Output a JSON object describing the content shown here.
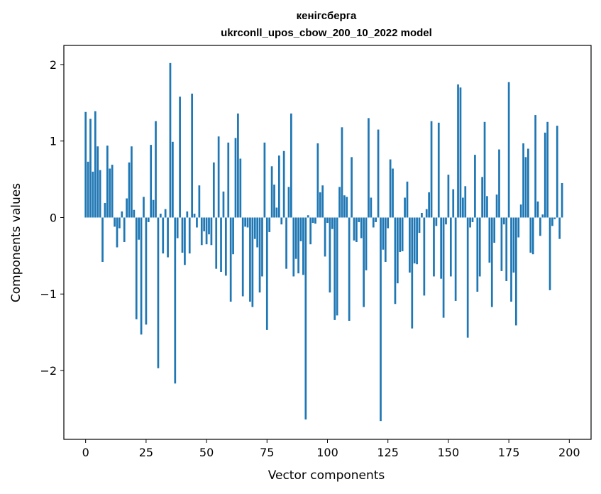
{
  "chart_data": {
    "type": "bar",
    "title": "кенігсберга",
    "subtitle": "ukrconll_upos_cbow_200_10_2022 model",
    "xlabel": "Vector components",
    "ylabel": "Components values",
    "xlim": [
      -9,
      209
    ],
    "ylim": [
      -2.9,
      2.25
    ],
    "xticks": [
      0,
      25,
      50,
      75,
      100,
      125,
      150,
      175,
      200
    ],
    "yticks": [
      -2,
      -1,
      0,
      1,
      2
    ],
    "ytick_labels": [
      "−2",
      "−1",
      "0",
      "1",
      "2"
    ],
    "bar_color": "#1f77b4",
    "grid": false,
    "values": [
      1.38,
      0.73,
      1.29,
      0.6,
      1.39,
      0.93,
      0.62,
      -0.58,
      0.19,
      0.94,
      0.64,
      0.69,
      -0.12,
      -0.39,
      -0.14,
      0.08,
      -0.32,
      0.25,
      0.72,
      0.93,
      0.1,
      -1.33,
      -0.29,
      -1.53,
      0.27,
      -1.4,
      -0.06,
      0.95,
      0.23,
      1.26,
      -1.97,
      0.05,
      -0.47,
      0.11,
      -0.52,
      2.02,
      0.99,
      -2.17,
      -0.27,
      1.58,
      -0.46,
      -0.62,
      0.08,
      -0.47,
      1.62,
      0.05,
      -0.13,
      0.42,
      -0.36,
      -0.18,
      -0.35,
      -0.22,
      -0.36,
      0.72,
      -0.67,
      1.06,
      -0.71,
      0.34,
      -0.76,
      0.98,
      -1.1,
      -0.48,
      1.04,
      1.36,
      0.77,
      -1.03,
      -0.12,
      -0.13,
      -1.1,
      -1.17,
      -0.28,
      -0.39,
      -0.98,
      -0.77,
      0.98,
      -1.47,
      -0.19,
      0.67,
      0.43,
      0.13,
      0.81,
      -0.09,
      0.87,
      -0.67,
      0.4,
      1.36,
      -0.77,
      -0.54,
      -0.73,
      -0.31,
      -0.75,
      -2.64,
      0.03,
      -0.35,
      -0.07,
      -0.08,
      0.97,
      0.33,
      0.42,
      -0.51,
      -0.07,
      -0.98,
      -0.15,
      -1.34,
      -1.28,
      0.4,
      1.18,
      0.29,
      0.27,
      -1.35,
      0.79,
      -0.3,
      -0.32,
      -0.06,
      -0.27,
      -1.17,
      -0.69,
      1.3,
      0.26,
      -0.13,
      -0.06,
      1.15,
      -2.66,
      -0.42,
      -0.58,
      -0.14,
      0.76,
      0.64,
      -1.13,
      -0.86,
      -0.45,
      -0.44,
      0.26,
      0.47,
      -0.72,
      -1.45,
      -0.6,
      -0.61,
      -0.2,
      0.06,
      -1.02,
      0.11,
      0.33,
      1.26,
      -0.77,
      -0.11,
      1.24,
      -0.8,
      -1.31,
      -0.09,
      0.56,
      -0.77,
      0.37,
      -1.09,
      1.74,
      1.7,
      0.26,
      0.41,
      -1.57,
      -0.13,
      -0.06,
      0.82,
      -0.97,
      -0.77,
      0.53,
      1.25,
      0.28,
      -0.59,
      -1.17,
      -0.33,
      0.3,
      0.89,
      -0.7,
      -0.09,
      -0.83,
      1.77,
      -1.1,
      -0.72,
      -1.41,
      -0.26,
      0.17,
      0.97,
      0.79,
      0.9,
      -0.46,
      -0.48,
      1.34,
      0.21,
      -0.24,
      0.04,
      1.11,
      1.25,
      -0.95,
      -0.11,
      -0.02,
      1.2,
      -0.28,
      0.45
    ]
  }
}
